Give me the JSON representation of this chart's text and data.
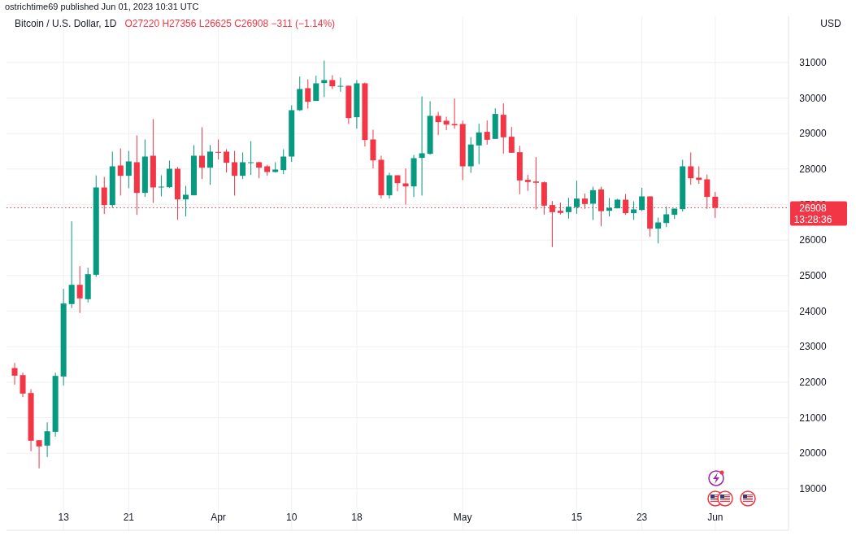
{
  "chart_data": {
    "type": "candlestick",
    "title": "Bitcoin / U.S. Dollar, 1D",
    "subtitle": "O27220 H27356 L26625 C26908 −311 (−1.14%)",
    "ylabel": "USD",
    "annotations": [
      "ostrichtime69 published Jun 01, 2023 10:31 UTC",
      "13:28:36"
    ],
    "x": [
      "2023-03-07",
      "2023-03-08",
      "2023-03-09",
      "2023-03-10",
      "2023-03-11",
      "2023-03-12",
      "2023-03-13",
      "2023-03-14",
      "2023-03-15",
      "2023-03-16",
      "2023-03-17",
      "2023-03-18",
      "2023-03-19",
      "2023-03-20",
      "2023-03-21",
      "2023-03-22",
      "2023-03-23",
      "2023-03-24",
      "2023-03-25",
      "2023-03-26",
      "2023-03-27",
      "2023-03-28",
      "2023-03-29",
      "2023-03-30",
      "2023-03-31",
      "2023-04-01",
      "2023-04-02",
      "2023-04-03",
      "2023-04-04",
      "2023-04-05",
      "2023-04-06",
      "2023-04-07",
      "2023-04-08",
      "2023-04-09",
      "2023-04-10",
      "2023-04-11",
      "2023-04-12",
      "2023-04-13",
      "2023-04-14",
      "2023-04-15",
      "2023-04-16",
      "2023-04-17",
      "2023-04-18",
      "2023-04-19",
      "2023-04-20",
      "2023-04-21",
      "2023-04-22",
      "2023-04-23",
      "2023-04-24",
      "2023-04-25",
      "2023-04-26",
      "2023-04-27",
      "2023-04-28",
      "2023-04-29",
      "2023-04-30",
      "2023-05-01",
      "2023-05-02",
      "2023-05-03",
      "2023-05-04",
      "2023-05-05",
      "2023-05-06",
      "2023-05-07",
      "2023-05-08",
      "2023-05-09",
      "2023-05-10",
      "2023-05-11",
      "2023-05-12",
      "2023-05-13",
      "2023-05-14",
      "2023-05-15",
      "2023-05-16",
      "2023-05-17",
      "2023-05-18",
      "2023-05-19",
      "2023-05-20",
      "2023-05-21",
      "2023-05-22",
      "2023-05-23",
      "2023-05-24",
      "2023-05-25",
      "2023-05-26",
      "2023-05-27",
      "2023-05-28",
      "2023-05-29",
      "2023-05-30",
      "2023-05-31",
      "2023-06-01"
    ],
    "ohlc": [
      [
        22397,
        22542,
        21931,
        22183
      ],
      [
        22198,
        22267,
        21580,
        21679
      ],
      [
        21695,
        21802,
        20053,
        20351
      ],
      [
        20366,
        20366,
        19573,
        20191
      ],
      [
        20214,
        20870,
        19893,
        20618
      ],
      [
        20603,
        22267,
        20466,
        22176
      ],
      [
        22160,
        24626,
        21908,
        24214
      ],
      [
        24199,
        26527,
        24084,
        24740
      ],
      [
        24740,
        25267,
        23947,
        24359
      ],
      [
        24336,
        25221,
        24244,
        25038
      ],
      [
        25023,
        27820,
        24962,
        27481
      ],
      [
        27481,
        27779,
        26733,
        26985
      ],
      [
        26985,
        28489,
        26908,
        28076
      ],
      [
        28099,
        28580,
        27252,
        27809
      ],
      [
        27809,
        28511,
        27458,
        28214
      ],
      [
        28191,
        28947,
        26710,
        27328
      ],
      [
        27328,
        28832,
        27214,
        28351
      ],
      [
        28374,
        29405,
        27046,
        27481
      ],
      [
        27489,
        27824,
        27229,
        27504
      ],
      [
        27489,
        28237,
        27466,
        28008
      ],
      [
        28008,
        28053,
        26573,
        27145
      ],
      [
        27145,
        27527,
        26664,
        27275
      ],
      [
        27260,
        28672,
        27260,
        28374
      ],
      [
        28374,
        29176,
        27718,
        28038
      ],
      [
        28038,
        28672,
        27557,
        28489
      ],
      [
        28481,
        28832,
        28267,
        28466
      ],
      [
        28489,
        28557,
        27901,
        28176
      ],
      [
        28191,
        28511,
        27252,
        27809
      ],
      [
        27809,
        28466,
        27718,
        28191
      ],
      [
        28183,
        28786,
        27832,
        28190
      ],
      [
        28191,
        28206,
        27741,
        28038
      ],
      [
        28076,
        28115,
        27809,
        27916
      ],
      [
        27916,
        28191,
        27901,
        27985
      ],
      [
        27969,
        28557,
        27855,
        28351
      ],
      [
        28351,
        29794,
        28198,
        29656
      ],
      [
        29656,
        30603,
        29634,
        30252
      ],
      [
        30275,
        30527,
        29702,
        29893
      ],
      [
        29916,
        30626,
        29916,
        30412
      ],
      [
        30420,
        31053,
        30023,
        30504
      ],
      [
        30504,
        30641,
        30252,
        30328
      ],
      [
        30336,
        30573,
        30176,
        30340
      ],
      [
        30344,
        30344,
        29267,
        29435
      ],
      [
        29458,
        30504,
        29137,
        30412
      ],
      [
        30412,
        30435,
        28634,
        28817
      ],
      [
        28832,
        29107,
        28015,
        28244
      ],
      [
        28260,
        28374,
        27168,
        27260
      ],
      [
        27260,
        27893,
        27168,
        27824
      ],
      [
        27824,
        27824,
        27374,
        27603
      ],
      [
        27595,
        28015,
        27000,
        27511
      ],
      [
        27511,
        28397,
        27214,
        28305
      ],
      [
        28313,
        30046,
        27252,
        28443
      ],
      [
        28427,
        29908,
        28405,
        29496
      ],
      [
        29496,
        29611,
        28954,
        29321
      ],
      [
        29359,
        29473,
        29092,
        29252
      ],
      [
        29267,
        29985,
        29137,
        29229
      ],
      [
        29267,
        29359,
        27687,
        28076
      ],
      [
        28076,
        28900,
        27893,
        28690
      ],
      [
        28664,
        29275,
        28137,
        29030
      ],
      [
        29046,
        29366,
        28687,
        28824
      ],
      [
        28847,
        29710,
        28847,
        29550
      ],
      [
        29527,
        29847,
        28435,
        28893
      ],
      [
        28908,
        29183,
        28458,
        28458
      ],
      [
        28473,
        28656,
        27290,
        27679
      ],
      [
        27695,
        27832,
        27382,
        27634
      ],
      [
        27649,
        28336,
        26863,
        27611
      ],
      [
        27626,
        27649,
        26718,
        26969
      ],
      [
        26985,
        27099,
        25802,
        26786
      ],
      [
        26824,
        27053,
        26718,
        26763
      ],
      [
        26786,
        27191,
        26603,
        26939
      ],
      [
        26924,
        27672,
        26740,
        27168
      ],
      [
        27168,
        27305,
        26878,
        27015
      ],
      [
        27023,
        27500,
        26565,
        27405
      ],
      [
        27424,
        27500,
        26389,
        26813
      ],
      [
        26824,
        27183,
        26664,
        26908
      ],
      [
        26893,
        27160,
        26893,
        27137
      ],
      [
        27137,
        27298,
        26710,
        26756
      ],
      [
        26756,
        27092,
        26565,
        26863
      ],
      [
        26847,
        27473,
        26817,
        27229
      ],
      [
        27229,
        27229,
        26092,
        26321
      ],
      [
        26321,
        26634,
        25908,
        26496
      ],
      [
        26481,
        26947,
        26366,
        26725
      ],
      [
        26710,
        26885,
        26595,
        26885
      ],
      [
        26870,
        28260,
        26802,
        28076
      ],
      [
        28076,
        28466,
        27557,
        27740
      ],
      [
        27756,
        28076,
        27580,
        27695
      ],
      [
        27710,
        27847,
        26878,
        27214
      ],
      [
        27220,
        27356,
        26625,
        26908
      ]
    ],
    "colors": [
      "#f23645",
      "#f23645",
      "#f23645",
      "#f23645",
      "#089981",
      "#089981",
      "#089981",
      "#089981",
      "#f23645",
      "#089981",
      "#089981",
      "#f23645",
      "#089981",
      "#f23645",
      "#089981",
      "#f23645",
      "#089981",
      "#f23645",
      "#089981",
      "#089981",
      "#f23645",
      "#089981",
      "#089981",
      "#f23645",
      "#089981",
      "#f23645",
      "#f23645",
      "#f23645",
      "#089981",
      "#089981",
      "#f23645",
      "#f23645",
      "#089981",
      "#089981",
      "#089981",
      "#089981",
      "#f23645",
      "#089981",
      "#089981",
      "#f23645",
      "#089981",
      "#f23645",
      "#089981",
      "#f23645",
      "#f23645",
      "#f23645",
      "#089981",
      "#f23645",
      "#f23645",
      "#089981",
      "#089981",
      "#089981",
      "#f23645",
      "#f23645",
      "#f23645",
      "#f23645",
      "#089981",
      "#089981",
      "#f23645",
      "#089981",
      "#f23645",
      "#f23645",
      "#f23645",
      "#f23645",
      "#f23645",
      "#f23645",
      "#f23645",
      "#f23645",
      "#089981",
      "#089981",
      "#f23645",
      "#089981",
      "#f23645",
      "#089981",
      "#089981",
      "#f23645",
      "#089981",
      "#089981",
      "#f23645",
      "#089981",
      "#089981",
      "#089981",
      "#089981",
      "#f23645",
      "#f23645",
      "#f23645",
      "#f23645"
    ],
    "xlim": [
      "2023-03-06",
      "2023-06-10"
    ],
    "xticks": [
      {
        "value": "2023-03-13",
        "label": "13"
      },
      {
        "value": "2023-03-21",
        "label": "21"
      },
      {
        "value": "2023-04-01",
        "label": "Apr"
      },
      {
        "value": "2023-04-10",
        "label": "10"
      },
      {
        "value": "2023-04-18",
        "label": "18"
      },
      {
        "value": "2023-05-01",
        "label": "May"
      },
      {
        "value": "2023-05-15",
        "label": "15"
      },
      {
        "value": "2023-05-23",
        "label": "23"
      },
      {
        "value": "2023-06-01",
        "label": "Jun"
      }
    ],
    "ylim": [
      17830,
      32300
    ],
    "yticks": [
      19000,
      20000,
      21000,
      22000,
      23000,
      24000,
      25000,
      26000,
      27000,
      28000,
      29000,
      30000,
      31000
    ],
    "grid": true,
    "ref_lines": [
      {
        "axis": "y",
        "value": 26908,
        "label": "26908",
        "color": "#f23645",
        "line_style": "dotted"
      }
    ]
  }
}
